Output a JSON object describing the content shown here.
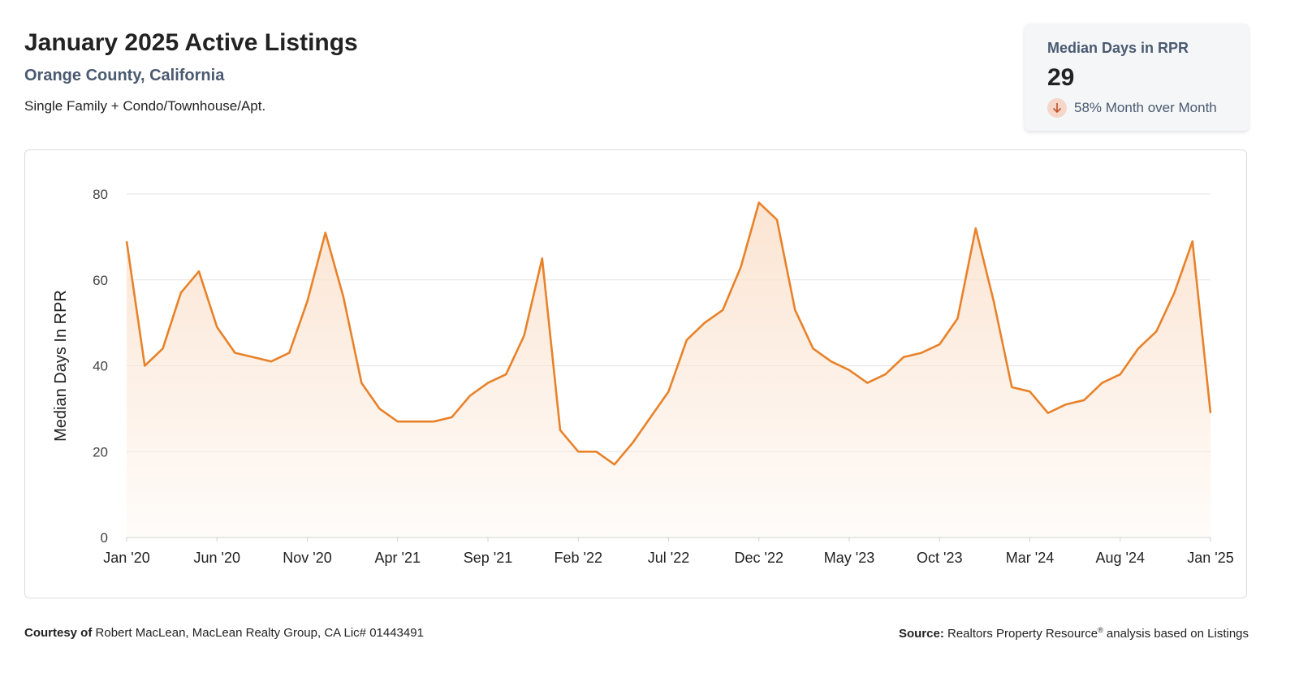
{
  "header": {
    "title": "January 2025 Active Listings",
    "subtitle": "Orange County, California",
    "description": "Single Family + Condo/Townhouse/Apt."
  },
  "kpi": {
    "label": "Median Days in RPR",
    "value": "29",
    "change": "58% Month over Month",
    "direction_icon": "arrow-down-icon"
  },
  "footer": {
    "courtesy_label": "Courtesy of",
    "courtesy_text": "Robert MacLean, MacLean Realty Group, CA Lic# 01443491",
    "source_label": "Source:",
    "source_name": "Realtors Property Resource",
    "source_reg": "®",
    "source_rest": "analysis based on Listings"
  },
  "colors": {
    "line": "#e8822a",
    "fill": "#fbe3d0",
    "grid": "#e3e3e3",
    "axis_text": "#444444",
    "arrow_bg": "#f6d6c8",
    "arrow": "#c0502a"
  },
  "chart_data": {
    "type": "area",
    "title": "January 2025 Active Listings",
    "ylabel": "Median Days In RPR",
    "xlabel": "",
    "ylim": [
      0,
      80
    ],
    "yticks": [
      0,
      20,
      40,
      60,
      80
    ],
    "grid": true,
    "legend": "none",
    "x_tick_labels": [
      "Jan '20",
      "Jun '20",
      "Nov '20",
      "Apr '21",
      "Sep '21",
      "Feb '22",
      "Jul '22",
      "Dec '22",
      "May '23",
      "Oct '23",
      "Mar '24",
      "Aug '24",
      "Jan '25"
    ],
    "x_tick_indices": [
      0,
      5,
      10,
      15,
      20,
      25,
      30,
      35,
      40,
      45,
      50,
      55,
      60
    ],
    "series": [
      {
        "name": "Median Days In RPR",
        "values": [
          69,
          40,
          44,
          57,
          62,
          49,
          43,
          42,
          41,
          43,
          55,
          71,
          56,
          36,
          30,
          27,
          27,
          27,
          28,
          33,
          36,
          38,
          47,
          65,
          25,
          20,
          20,
          17,
          22,
          28,
          34,
          46,
          50,
          53,
          63,
          78,
          74,
          53,
          44,
          41,
          39,
          36,
          38,
          42,
          43,
          45,
          51,
          72,
          55,
          35,
          34,
          29,
          31,
          32,
          36,
          38,
          44,
          48,
          57,
          69,
          29
        ]
      }
    ]
  }
}
